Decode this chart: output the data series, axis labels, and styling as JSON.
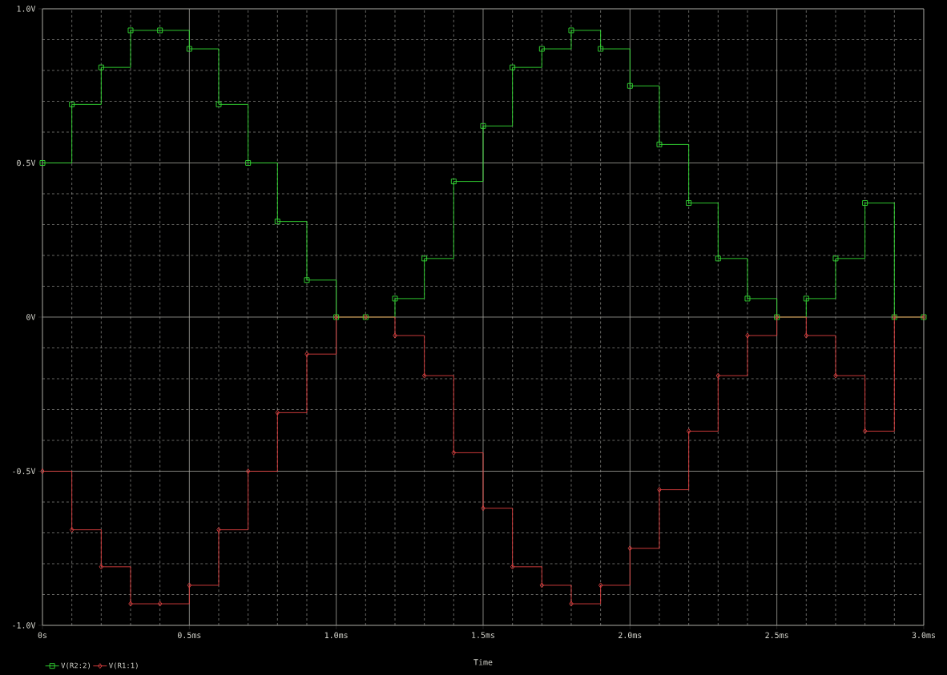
{
  "chart_data": {
    "type": "step",
    "xlabel": "Time",
    "x": [
      0,
      0.1,
      0.2,
      0.3,
      0.4,
      0.5,
      0.6,
      0.7,
      0.8,
      0.9,
      1.0,
      1.1,
      1.2,
      1.3,
      1.4,
      1.5,
      1.6,
      1.7,
      1.8,
      1.9,
      2.0,
      2.1,
      2.2,
      2.3,
      2.4,
      2.5,
      2.6,
      2.7,
      2.8,
      2.9,
      3.0
    ],
    "series": [
      {
        "name": "V(R2:2)",
        "color": "#33dd33",
        "marker": "square",
        "values": [
          0.5,
          0.69,
          0.81,
          0.93,
          0.93,
          0.87,
          0.69,
          0.5,
          0.31,
          0.12,
          0,
          0,
          0.06,
          0.19,
          0.44,
          0.62,
          0.81,
          0.87,
          0.93,
          0.87,
          0.75,
          0.56,
          0.37,
          0.19,
          0.06,
          0,
          0.06,
          0.19,
          0.37,
          0,
          0
        ]
      },
      {
        "name": "V(R1:1)",
        "color": "#e04040",
        "marker": "diamond",
        "values": [
          -0.5,
          -0.69,
          -0.81,
          -0.93,
          -0.93,
          -0.87,
          -0.69,
          -0.5,
          -0.31,
          -0.12,
          0,
          0,
          -0.06,
          -0.19,
          -0.44,
          -0.62,
          -0.81,
          -0.87,
          -0.93,
          -0.87,
          -0.75,
          -0.56,
          -0.37,
          -0.19,
          -0.06,
          0,
          -0.06,
          -0.19,
          -0.37,
          0,
          0
        ]
      }
    ],
    "xlim": [
      0,
      3.0
    ],
    "ylim": [
      -1.0,
      1.0
    ],
    "xticks": [
      {
        "value": 0,
        "label": "0s"
      },
      {
        "value": 0.5,
        "label": "0.5ms"
      },
      {
        "value": 1.0,
        "label": "1.0ms"
      },
      {
        "value": 1.5,
        "label": "1.5ms"
      },
      {
        "value": 2.0,
        "label": "2.0ms"
      },
      {
        "value": 2.5,
        "label": "2.5ms"
      },
      {
        "value": 3.0,
        "label": "3.0ms"
      }
    ],
    "yticks": [
      {
        "value": -1.0,
        "label": "-1.0V"
      },
      {
        "value": -0.5,
        "label": "-0.5V"
      },
      {
        "value": 0,
        "label": "0V"
      },
      {
        "value": 0.5,
        "label": "0.5V"
      },
      {
        "value": 1.0,
        "label": "1.0V"
      }
    ],
    "grid": true,
    "legend": "bottom left"
  }
}
